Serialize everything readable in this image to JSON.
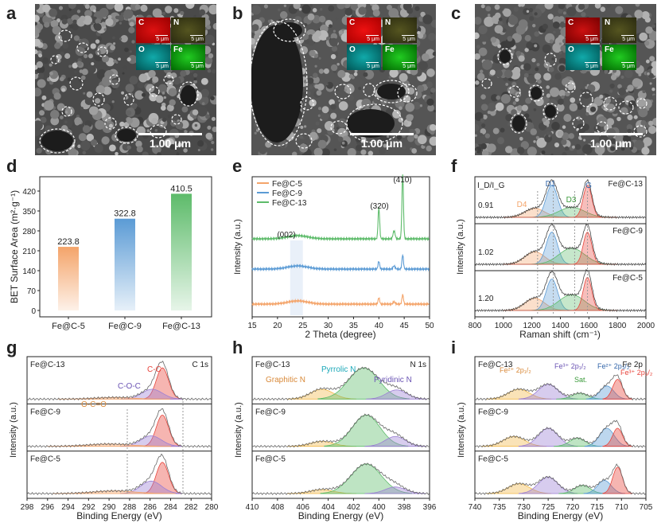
{
  "panel_labels": {
    "a": "a",
    "b": "b",
    "c": "c",
    "d": "d",
    "e": "e",
    "f": "f",
    "g": "g",
    "h": "h",
    "i": "i"
  },
  "sem": {
    "scale_text": "1.00 μm",
    "map_scale": "5 μm",
    "elements": [
      "C",
      "N",
      "O",
      "Fe"
    ]
  },
  "bet": {
    "ylabel": "BET Surface Area (m²·g⁻¹)",
    "categories": [
      "Fe@C-5",
      "Fe@C-9",
      "Fe@C-13"
    ],
    "values": [
      223.8,
      322.8,
      410.5
    ],
    "value_labels": [
      "223.8",
      "322.8",
      "410.5"
    ],
    "yticks": [
      "0",
      "70",
      "140",
      "210",
      "280",
      "350",
      "420"
    ]
  },
  "xrd": {
    "xlabel": "2 Theta (degree)",
    "ylabel": "Intensity (a.u.)",
    "legend": [
      "Fe@C-5",
      "Fe@C-9",
      "Fe@C-13"
    ],
    "peaks": [
      "(002)",
      "(320)",
      "(410)"
    ],
    "xticks": [
      "15",
      "20",
      "25",
      "30",
      "35",
      "40",
      "45",
      "50"
    ]
  },
  "raman": {
    "xlabel": "Raman shift (cm⁻¹)",
    "ylabel": "Intensity (a.u.)",
    "samples": [
      "Fe@C-13",
      "Fe@C-9",
      "Fe@C-5"
    ],
    "ratios": [
      "0.91",
      "1.02",
      "1.20"
    ],
    "ratio_label": "I_D/I_G",
    "bands": [
      "D4",
      "D1",
      "D3",
      "G"
    ],
    "xticks": [
      "800",
      "1000",
      "1200",
      "1400",
      "1600",
      "1800",
      "2000"
    ]
  },
  "xps_c": {
    "xlabel": "Binding Energy (eV)",
    "ylabel": "Intensity (a.u.)",
    "tag": "C 1s",
    "samples": [
      "Fe@C-13",
      "Fe@C-9",
      "Fe@C-5"
    ],
    "peaks": [
      "C-C",
      "C-O-C",
      "O-C=O"
    ],
    "xticks": [
      "298",
      "296",
      "294",
      "292",
      "290",
      "288",
      "286",
      "284",
      "282",
      "280"
    ]
  },
  "xps_n": {
    "xlabel": "Binding Energy (eV)",
    "ylabel": "Intensity (a.u.)",
    "tag": "N 1s",
    "samples": [
      "Fe@C-13",
      "Fe@C-9",
      "Fe@C-5"
    ],
    "peaks": [
      "Graphitic N",
      "Pyrrolic N",
      "Pyridinic N"
    ],
    "xticks": [
      "410",
      "408",
      "406",
      "404",
      "402",
      "400",
      "398",
      "396"
    ]
  },
  "xps_fe": {
    "xlabel": "Binding Energy (eV)",
    "ylabel": "Intensity (a.u.)",
    "tag": "Fe 2p",
    "samples": [
      "Fe@C-13",
      "Fe@C-9",
      "Fe@C-5"
    ],
    "peaks": [
      "Fe²⁺ 2p₁/₂",
      "Fe³⁺ 2p₁/₂",
      "Sat.",
      "Fe²⁺ 2p₃/₂",
      "Fe³⁺ 2p₃/₂"
    ],
    "xticks": [
      "740",
      "735",
      "730",
      "725",
      "720",
      "715",
      "710",
      "705"
    ]
  },
  "colors": {
    "orange": "#f4a46a",
    "blue": "#5b9bd5",
    "green": "#5dbb6a",
    "red": "#e8453c",
    "purple": "#9b7fd4",
    "gray": "#888888"
  },
  "chart_data": [
    {
      "type": "bar",
      "title": "",
      "categories": [
        "Fe@C-5",
        "Fe@C-9",
        "Fe@C-13"
      ],
      "values": [
        223.8,
        322.8,
        410.5
      ],
      "xlabel": "",
      "ylabel": "BET Surface Area (m2·g-1)",
      "ylim": [
        0,
        420
      ]
    },
    {
      "type": "line",
      "title": "",
      "xlabel": "2 Theta (degree)",
      "ylabel": "Intensity (a.u.)",
      "xlim": [
        15,
        50
      ],
      "series": [
        {
          "name": "Fe@C-5"
        },
        {
          "name": "Fe@C-9"
        },
        {
          "name": "Fe@C-13"
        }
      ],
      "annotations": [
        "(002)",
        "(320)",
        "(410)"
      ]
    },
    {
      "type": "line",
      "title": "",
      "xlabel": "Raman shift (cm-1)",
      "ylabel": "Intensity (a.u.)",
      "xlim": [
        800,
        2000
      ],
      "series": [
        {
          "name": "Fe@C-13",
          "ratio": 0.91
        },
        {
          "name": "Fe@C-9",
          "ratio": 1.02
        },
        {
          "name": "Fe@C-5",
          "ratio": 1.2
        }
      ]
    },
    {
      "type": "line",
      "title": "",
      "xlabel": "Binding Energy (eV)",
      "ylabel": "Intensity (a.u.)",
      "xlim": [
        298,
        280
      ],
      "series": [
        {
          "name": "Fe@C-13"
        },
        {
          "name": "Fe@C-9"
        },
        {
          "name": "Fe@C-5"
        }
      ]
    },
    {
      "type": "line",
      "title": "",
      "xlabel": "Binding Energy (eV)",
      "ylabel": "Intensity (a.u.)",
      "xlim": [
        410,
        396
      ],
      "series": [
        {
          "name": "Fe@C-13"
        },
        {
          "name": "Fe@C-9"
        },
        {
          "name": "Fe@C-5"
        }
      ]
    },
    {
      "type": "line",
      "title": "",
      "xlabel": "Binding Energy (eV)",
      "ylabel": "Intensity (a.u.)",
      "xlim": [
        740,
        705
      ],
      "series": [
        {
          "name": "Fe@C-13"
        },
        {
          "name": "Fe@C-9"
        },
        {
          "name": "Fe@C-5"
        }
      ]
    }
  ]
}
